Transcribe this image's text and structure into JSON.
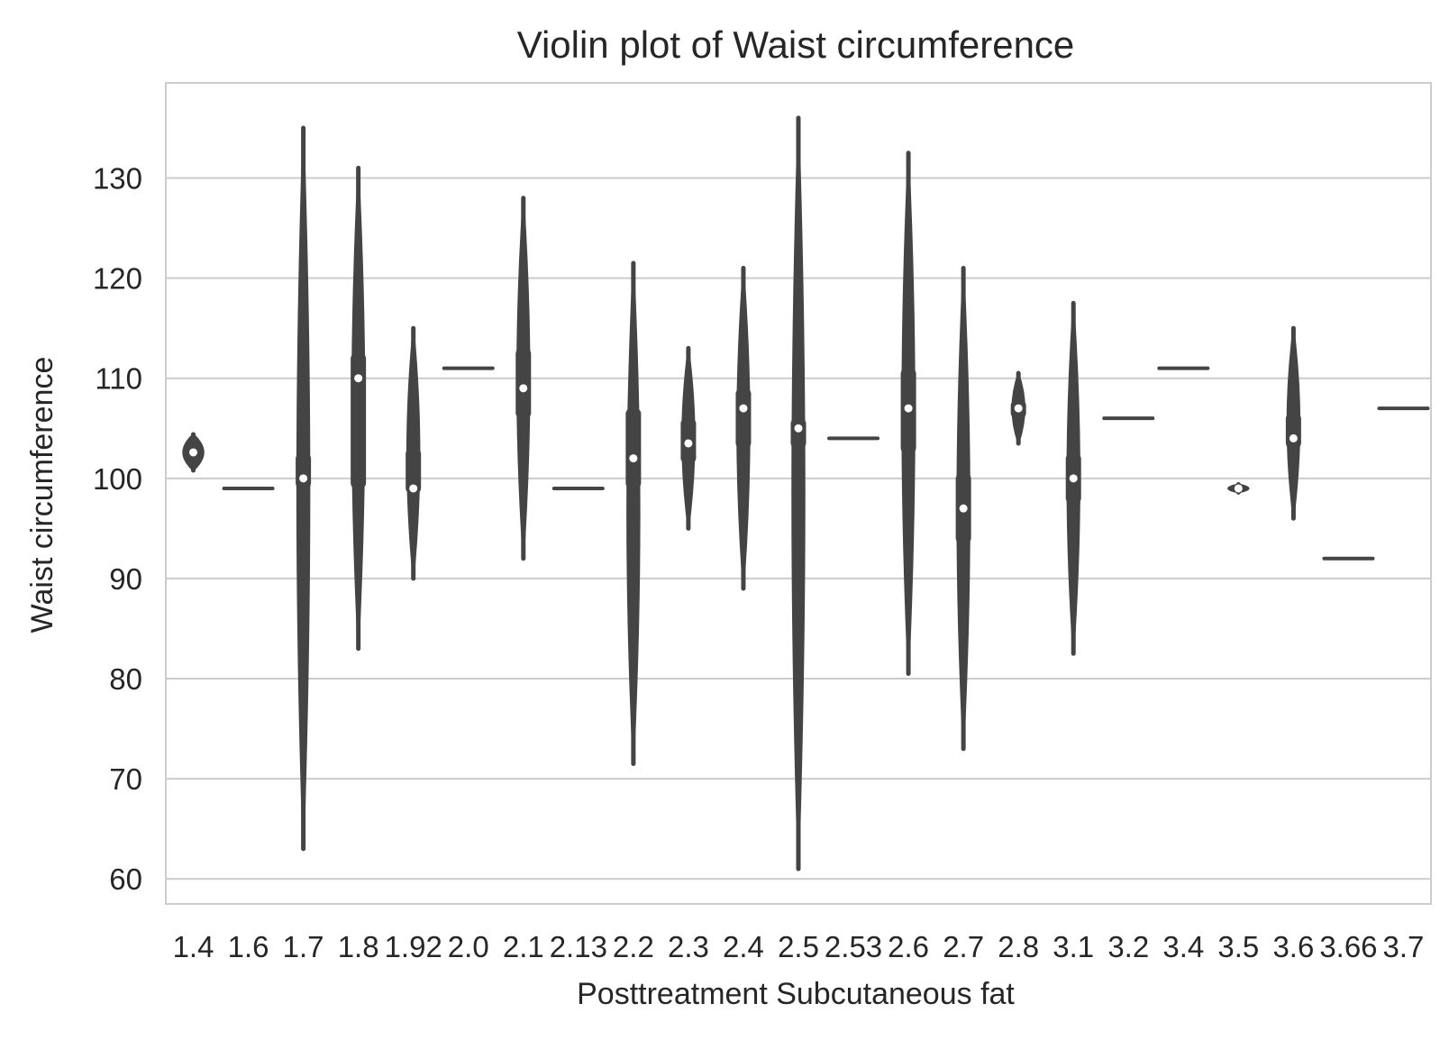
{
  "chart_data": {
    "type": "violin",
    "title": "Violin plot of Waist circumference",
    "xlabel": "Posttreatment Subcutaneous fat",
    "ylabel": "Waist circumference",
    "ylim": [
      57.5,
      139.5
    ],
    "yticks": [
      60,
      70,
      80,
      90,
      100,
      110,
      120,
      130
    ],
    "grid": "horizontal",
    "colors": {
      "violin": "#444444",
      "median": "#ffffff",
      "grid": "#cccccc",
      "frame": "#cccccc",
      "text": "#262626"
    },
    "categories": [
      "1.4",
      "1.6",
      "1.7",
      "1.8",
      "1.92",
      "2.0",
      "2.1",
      "2.13",
      "2.2",
      "2.3",
      "2.4",
      "2.5",
      "2.53",
      "2.6",
      "2.7",
      "2.8",
      "3.1",
      "3.2",
      "3.4",
      "3.5",
      "3.6",
      "3.66",
      "3.7"
    ],
    "violins": [
      {
        "category": "1.4",
        "min": 100.8,
        "q1": 102.0,
        "median": 102.6,
        "q3": 103.3,
        "max": 104.4
      },
      {
        "category": "1.6",
        "min": 99,
        "q1": 99,
        "median": 99,
        "q3": 99,
        "max": 99
      },
      {
        "category": "1.7",
        "min": 63,
        "q1": 99.0,
        "median": 100,
        "q3": 102.5,
        "max": 135
      },
      {
        "category": "1.8",
        "min": 83,
        "q1": 99.0,
        "median": 110,
        "q3": 112.5,
        "max": 131
      },
      {
        "category": "1.92",
        "min": 90,
        "q1": 98.5,
        "median": 99,
        "q3": 103.0,
        "max": 115
      },
      {
        "category": "2.0",
        "min": 111,
        "q1": 111,
        "median": 111,
        "q3": 111,
        "max": 111
      },
      {
        "category": "2.1",
        "min": 92,
        "q1": 106.0,
        "median": 109,
        "q3": 113.0,
        "max": 128
      },
      {
        "category": "2.13",
        "min": 99,
        "q1": 99,
        "median": 99,
        "q3": 99,
        "max": 99
      },
      {
        "category": "2.2",
        "min": 71.5,
        "q1": 99.0,
        "median": 102,
        "q3": 107.0,
        "max": 121.5
      },
      {
        "category": "2.3",
        "min": 95,
        "q1": 101.5,
        "median": 103.5,
        "q3": 106.0,
        "max": 113
      },
      {
        "category": "2.4",
        "min": 89,
        "q1": 103.0,
        "median": 107,
        "q3": 109.0,
        "max": 121
      },
      {
        "category": "2.5",
        "min": 61,
        "q1": 103.0,
        "median": 105,
        "q3": 106.0,
        "max": 136
      },
      {
        "category": "2.53",
        "min": 104,
        "q1": 104,
        "median": 104,
        "q3": 104,
        "max": 104
      },
      {
        "category": "2.6",
        "min": 80.5,
        "q1": 102.5,
        "median": 107,
        "q3": 111.0,
        "max": 132.5
      },
      {
        "category": "2.7",
        "min": 73,
        "q1": 93.5,
        "median": 97,
        "q3": 100.5,
        "max": 121
      },
      {
        "category": "2.8",
        "min": 103.5,
        "q1": 106.0,
        "median": 107,
        "q3": 107.8,
        "max": 110.5
      },
      {
        "category": "3.1",
        "min": 82.5,
        "q1": 97.5,
        "median": 100,
        "q3": 102.5,
        "max": 117.5
      },
      {
        "category": "3.2",
        "min": 106,
        "q1": 106,
        "median": 106,
        "q3": 106,
        "max": 106
      },
      {
        "category": "3.4",
        "min": 111,
        "q1": 111,
        "median": 111,
        "q3": 111,
        "max": 111
      },
      {
        "category": "3.5",
        "min": 98.6,
        "q1": 98.8,
        "median": 99,
        "q3": 99.2,
        "max": 99.4
      },
      {
        "category": "3.6",
        "min": 96,
        "q1": 103.0,
        "median": 104,
        "q3": 106.5,
        "max": 115
      },
      {
        "category": "3.66",
        "min": 92,
        "q1": 92,
        "median": 92,
        "q3": 92,
        "max": 92
      },
      {
        "category": "3.7",
        "min": 107,
        "q1": 107,
        "median": 107,
        "q3": 107,
        "max": 107
      }
    ]
  }
}
